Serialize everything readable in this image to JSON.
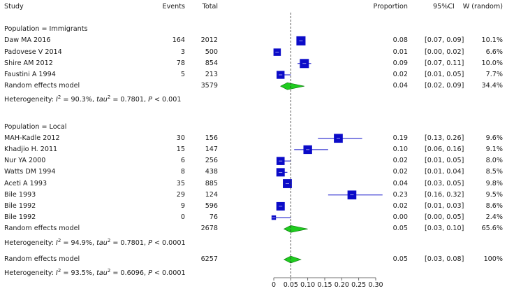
{
  "headers": {
    "study": "Study",
    "events": "Events",
    "total": "Total",
    "proportion": "Proportion",
    "ci": "95%CI",
    "weight": "W (random)"
  },
  "groups": [
    {
      "label": "Population = Immigrants",
      "studies": [
        {
          "study": "Daw MA 2016",
          "events": "164",
          "total": "2012",
          "prop": 0.08,
          "lo": 0.07,
          "hi": 0.09,
          "prop_text": "0.08",
          "ci_text": "[0.07, 0.09]",
          "w_text": "10.1%",
          "w": 10.1
        },
        {
          "study": "Padovese V 2014",
          "events": "3",
          "total": "500",
          "prop": 0.01,
          "lo": 0.0,
          "hi": 0.02,
          "prop_text": "0.01",
          "ci_text": "[0.00, 0.02]",
          "w_text": "6.6%",
          "w": 6.6
        },
        {
          "study": "Shire AM 2012",
          "events": "78",
          "total": "854",
          "prop": 0.09,
          "lo": 0.07,
          "hi": 0.11,
          "prop_text": "0.09",
          "ci_text": "[0.07, 0.11]",
          "w_text": "10.0%",
          "w": 10.0
        },
        {
          "study": "Faustini A 1994",
          "events": "5",
          "total": "213",
          "prop": 0.02,
          "lo": 0.01,
          "hi": 0.05,
          "prop_text": "0.02",
          "ci_text": "[0.01, 0.05]",
          "w_text": "7.7%",
          "w": 7.7
        }
      ],
      "summary": {
        "label": "Random effects model",
        "total": "3579",
        "prop": 0.04,
        "lo": 0.02,
        "hi": 0.09,
        "prop_text": "0.04",
        "ci_text": "[0.02, 0.09]",
        "w_text": "34.4%"
      },
      "heterogeneity": {
        "prefix": "Heterogeneity: ",
        "i2_sym": "I",
        "i2_val": " = 90.3%, ",
        "tau_sym": "tau",
        "tau_val": " = 0.7801, ",
        "p_sym": "P",
        "p_val": " < 0.001"
      }
    },
    {
      "label": "Population = Local",
      "studies": [
        {
          "study": "MAH-Kadle 2012",
          "events": "30",
          "total": "156",
          "prop": 0.19,
          "lo": 0.13,
          "hi": 0.26,
          "prop_text": "0.19",
          "ci_text": "[0.13, 0.26]",
          "w_text": "9.6%",
          "w": 9.6
        },
        {
          "study": "Khadjio H. 2011",
          "events": "15",
          "total": "147",
          "prop": 0.1,
          "lo": 0.06,
          "hi": 0.16,
          "prop_text": "0.10",
          "ci_text": "[0.06, 0.16]",
          "w_text": "9.1%",
          "w": 9.1
        },
        {
          "study": "Nur YA 2000",
          "events": "6",
          "total": "256",
          "prop": 0.02,
          "lo": 0.01,
          "hi": 0.05,
          "prop_text": "0.02",
          "ci_text": "[0.01, 0.05]",
          "w_text": "8.0%",
          "w": 8.0
        },
        {
          "study": "Watts DM 1994",
          "events": "8",
          "total": "438",
          "prop": 0.02,
          "lo": 0.01,
          "hi": 0.04,
          "prop_text": "0.02",
          "ci_text": "[0.01, 0.04]",
          "w_text": "8.5%",
          "w": 8.5
        },
        {
          "study": "Aceti A 1993",
          "events": "35",
          "total": "885",
          "prop": 0.04,
          "lo": 0.03,
          "hi": 0.05,
          "prop_text": "0.04",
          "ci_text": "[0.03, 0.05]",
          "w_text": "9.8%",
          "w": 9.8
        },
        {
          "study": "Bile 1993",
          "events": "29",
          "total": "124",
          "prop": 0.23,
          "lo": 0.16,
          "hi": 0.32,
          "prop_text": "0.23",
          "ci_text": "[0.16, 0.32]",
          "w_text": "9.5%",
          "w": 9.5
        },
        {
          "study": "Bile 1992",
          "events": "9",
          "total": "596",
          "prop": 0.02,
          "lo": 0.01,
          "hi": 0.03,
          "prop_text": "0.02",
          "ci_text": "[0.01, 0.03]",
          "w_text": "8.6%",
          "w": 8.6
        },
        {
          "study": "Bile 1992",
          "events": "0",
          "total": "76",
          "prop": 0.0,
          "lo": 0.0,
          "hi": 0.05,
          "prop_text": "0.00",
          "ci_text": "[0.00, 0.05]",
          "w_text": "2.4%",
          "w": 2.4
        }
      ],
      "summary": {
        "label": "Random effects model",
        "total": "2678",
        "prop": 0.05,
        "lo": 0.03,
        "hi": 0.1,
        "prop_text": "0.05",
        "ci_text": "[0.03, 0.10]",
        "w_text": "65.6%"
      },
      "heterogeneity": {
        "prefix": "Heterogeneity: ",
        "i2_sym": "I",
        "i2_val": " = 94.9%, ",
        "tau_sym": "tau",
        "tau_val": " = 0.7801, ",
        "p_sym": "P",
        "p_val": " < 0.0001"
      }
    }
  ],
  "overall": {
    "summary": {
      "label": "Random effects model",
      "total": "6257",
      "prop": 0.05,
      "lo": 0.03,
      "hi": 0.08,
      "prop_text": "0.05",
      "ci_text": "[0.03, 0.08]",
      "w_text": "100%"
    },
    "heterogeneity": {
      "prefix": "Heterogeneity: ",
      "i2_sym": "I",
      "i2_val": " = 93.5%, ",
      "tau_sym": "tau",
      "tau_val": " = 0.6096, ",
      "p_sym": "P",
      "p_val": " < 0.0001"
    }
  },
  "chart_data": {
    "type": "forest",
    "xlim": [
      0,
      0.3
    ],
    "xticks": [
      0,
      0.05,
      0.1,
      0.15,
      0.2,
      0.25,
      0.3
    ],
    "xtick_labels": [
      "0",
      "0.05",
      "0.10",
      "0.15",
      "0.20",
      "0.25",
      "0.30"
    ],
    "reference_line": 0.05,
    "colors": {
      "square": "#0b0bc8",
      "ci": "#0b0bc8",
      "diamond": "#1fcc1f",
      "diamond_edge": "#0a7a0a",
      "ref": "#333333",
      "axis": "#444444"
    }
  }
}
